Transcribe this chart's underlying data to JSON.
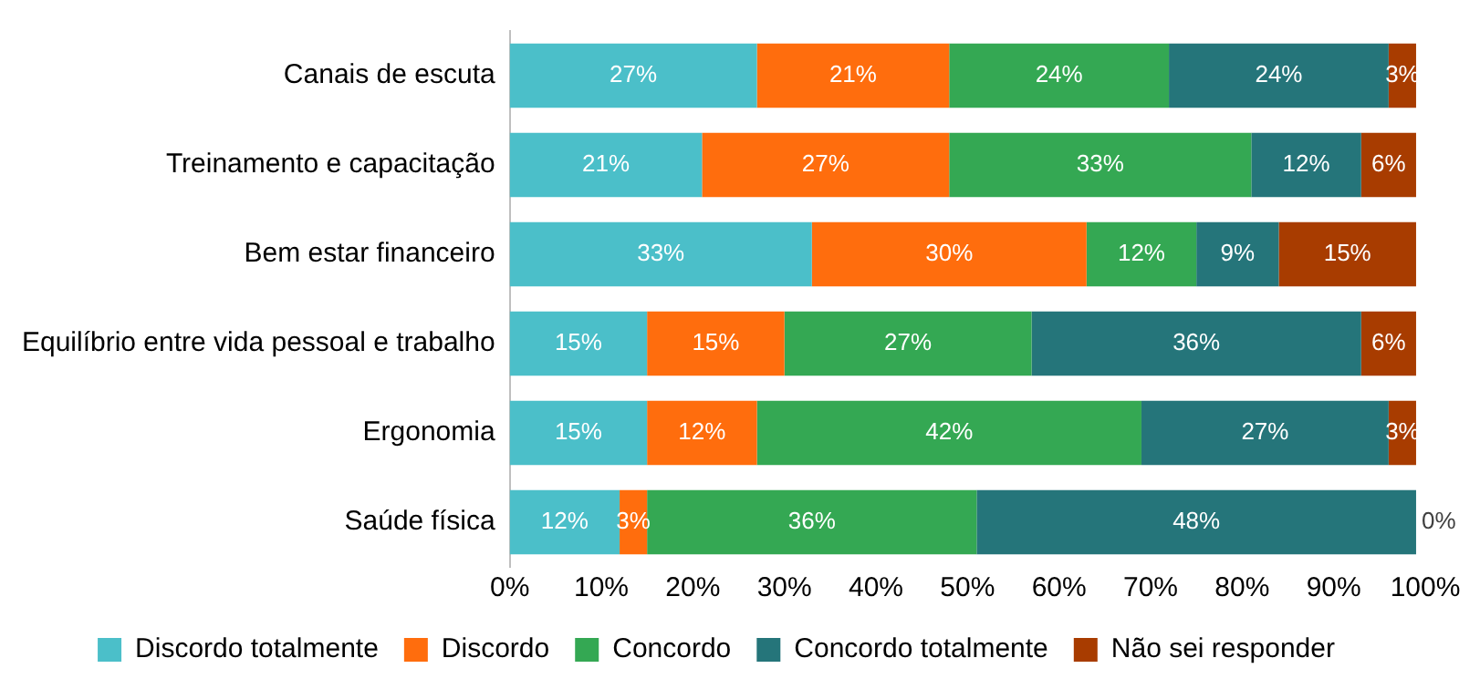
{
  "chart_data": {
    "type": "bar",
    "orientation": "horizontal",
    "stacked": true,
    "categories": [
      "Canais de escuta",
      "Treinamento e capacitação",
      "Bem estar financeiro",
      "Equilíbrio entre vida pessoal e trabalho",
      "Ergonomia",
      "Saúde física"
    ],
    "series": [
      {
        "name": "Discordo totalmente",
        "color": "#4bbfc9",
        "values": [
          27,
          21,
          33,
          15,
          15,
          12
        ],
        "value_labels": [
          "27%",
          "21%",
          "33%",
          "15%",
          "15%",
          "12%"
        ]
      },
      {
        "name": "Discordo",
        "color": "#ff6d0d",
        "values": [
          21,
          27,
          30,
          15,
          12,
          3
        ],
        "value_labels": [
          "21%",
          "27%",
          "30%",
          "15%",
          "12%",
          "3%"
        ]
      },
      {
        "name": "Concordo",
        "color": "#34a853",
        "values": [
          24,
          33,
          12,
          27,
          42,
          36
        ],
        "value_labels": [
          "24%",
          "33%",
          "12%",
          "27%",
          "42%",
          "36%"
        ]
      },
      {
        "name": "Concordo totalmente",
        "color": "#25757a",
        "values": [
          24,
          12,
          9,
          36,
          27,
          48
        ],
        "value_labels": [
          "24%",
          "12%",
          "9%",
          "36%",
          "27%",
          "48%"
        ]
      },
      {
        "name": "Não sei responder",
        "color": "#a83c00",
        "values": [
          3,
          6,
          15,
          6,
          3,
          0
        ],
        "value_labels": [
          "3%",
          "6%",
          "15%",
          "6%",
          "3%",
          "0%"
        ]
      }
    ],
    "xlim": [
      0,
      100
    ],
    "xticks": [
      {
        "value": 0,
        "label": "0%"
      },
      {
        "value": 10,
        "label": "10%"
      },
      {
        "value": 20,
        "label": "20%"
      },
      {
        "value": 30,
        "label": "30%"
      },
      {
        "value": 40,
        "label": "40%"
      },
      {
        "value": 50,
        "label": "50%"
      },
      {
        "value": 60,
        "label": "60%"
      },
      {
        "value": 70,
        "label": "70%"
      },
      {
        "value": 80,
        "label": "80%"
      },
      {
        "value": 90,
        "label": "90%"
      },
      {
        "value": 100,
        "label": "100%"
      }
    ],
    "grid": false,
    "legend": "bottom"
  }
}
